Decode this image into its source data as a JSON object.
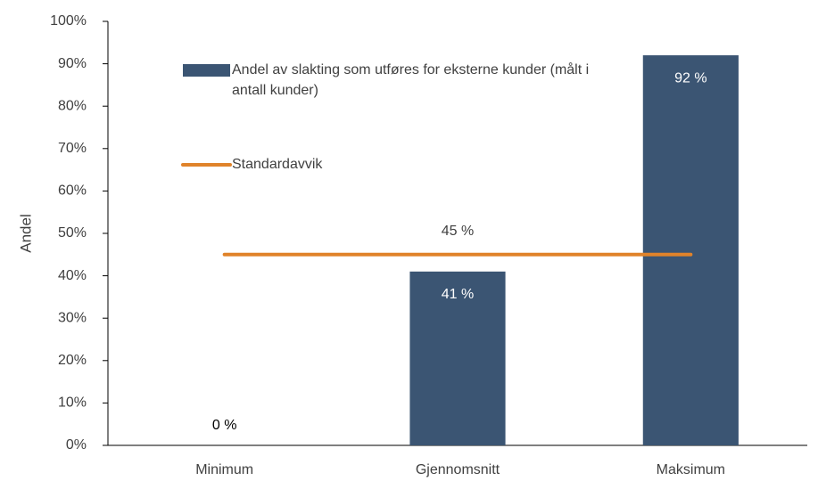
{
  "chart_data": {
    "type": "bar",
    "categories": [
      "Minimum",
      "Gjennomsnitt",
      "Maksimum"
    ],
    "series": [
      {
        "name": "Andel av slakting som utføres for eksterne kunder (målt i antall kunder)",
        "type": "bar",
        "color": "#3b5573",
        "values": [
          0,
          41,
          92
        ],
        "value_labels": [
          "0 %",
          "41 %",
          "92 %"
        ]
      },
      {
        "name": "Standardavvik",
        "type": "line",
        "color": "#e0832a",
        "values": [
          45,
          45,
          45
        ],
        "value_labels": [
          null,
          "45 %",
          null
        ]
      }
    ],
    "y_label": "Andel",
    "ylim": [
      0,
      100
    ],
    "yticks": [
      {
        "value": 0,
        "label": "0%"
      },
      {
        "value": 10,
        "label": "10%"
      },
      {
        "value": 20,
        "label": "20%"
      },
      {
        "value": 30,
        "label": "30%"
      },
      {
        "value": 40,
        "label": "40%"
      },
      {
        "value": 50,
        "label": "50%"
      },
      {
        "value": 60,
        "label": "60%"
      },
      {
        "value": 70,
        "label": "70%"
      },
      {
        "value": 80,
        "label": "80%"
      },
      {
        "value": 90,
        "label": "90%"
      },
      {
        "value": 100,
        "label": "100%"
      }
    ],
    "grid": false,
    "legend": "upper left"
  }
}
